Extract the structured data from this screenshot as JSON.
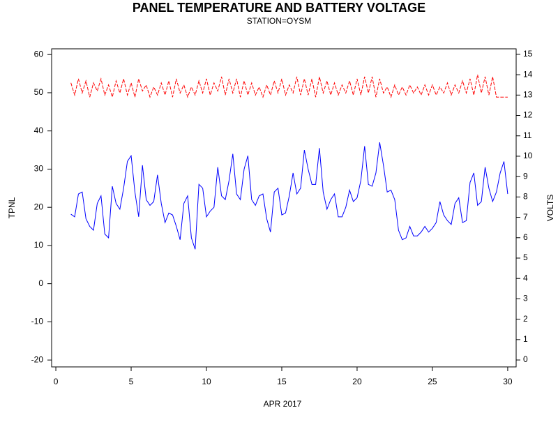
{
  "chart_data": {
    "type": "line",
    "title": "PANEL TEMPERATURE AND BATTERY VOLTAGE",
    "subtitle": "STATION=OYSM",
    "x_label": "APR 2017",
    "y_label": "TPNL",
    "y2_label": "VOLTS",
    "xlim": [
      -0.28,
      30.56
    ],
    "xticks": [
      0,
      5,
      10,
      15,
      20,
      25,
      30
    ],
    "ylim": [
      -21.8,
      61.5
    ],
    "yticks": [
      -20,
      -10,
      0,
      10,
      20,
      30,
      40,
      50,
      60
    ],
    "y2lim": [
      -0.34,
      15.27
    ],
    "y2ticks": [
      0,
      1,
      2,
      3,
      4,
      5,
      6,
      7,
      8,
      9,
      10,
      11,
      12,
      13,
      14,
      15
    ],
    "x": [
      1,
      1.25,
      1.5,
      1.75,
      2,
      2.25,
      2.5,
      2.75,
      3,
      3.25,
      3.5,
      3.75,
      4,
      4.25,
      4.5,
      4.75,
      5,
      5.25,
      5.5,
      5.75,
      6,
      6.25,
      6.5,
      6.75,
      7,
      7.25,
      7.5,
      7.75,
      8,
      8.25,
      8.5,
      8.75,
      9,
      9.25,
      9.5,
      9.75,
      10,
      10.25,
      10.5,
      10.75,
      11,
      11.25,
      11.5,
      11.75,
      12,
      12.25,
      12.5,
      12.75,
      13,
      13.25,
      13.5,
      13.75,
      14,
      14.25,
      14.5,
      14.75,
      15,
      15.25,
      15.5,
      15.75,
      16,
      16.25,
      16.5,
      16.75,
      17,
      17.25,
      17.5,
      17.75,
      18,
      18.25,
      18.5,
      18.75,
      19,
      19.25,
      19.5,
      19.75,
      20,
      20.25,
      20.5,
      20.75,
      21,
      21.25,
      21.5,
      21.75,
      22,
      22.25,
      22.5,
      22.75,
      23,
      23.25,
      23.5,
      23.75,
      24,
      24.25,
      24.5,
      24.75,
      25,
      25.25,
      25.5,
      25.75,
      26,
      26.25,
      26.5,
      26.75,
      27,
      27.25,
      27.5,
      27.75,
      28,
      28.25,
      28.5,
      28.75,
      29,
      29.25,
      29.5,
      29.75,
      30
    ],
    "series": [
      {
        "color": "#0000ff",
        "axis": "y",
        "dashed": false,
        "values": [
          18.2,
          17.5,
          23.5,
          24,
          17,
          15,
          14,
          21,
          23,
          13,
          12,
          25.5,
          21,
          19.5,
          25,
          32,
          33.5,
          24,
          17.5,
          31,
          22,
          20.5,
          21.5,
          28.5,
          21,
          16,
          18.5,
          18,
          15,
          11.5,
          21,
          23,
          12,
          9,
          26,
          25,
          17.5,
          19,
          20,
          30.5,
          23,
          22,
          27,
          34,
          23.5,
          22,
          30,
          33.5,
          22,
          20.5,
          23,
          23.5,
          17,
          13.5,
          24,
          25,
          18,
          18.5,
          23,
          29,
          23.5,
          25,
          35,
          30,
          26,
          26,
          35.5,
          24,
          19.5,
          22,
          23.5,
          17.5,
          17.5,
          20,
          24.5,
          21.5,
          22.5,
          27,
          36,
          26,
          25.5,
          29,
          37,
          31,
          24,
          24.5,
          22,
          14,
          11.5,
          12,
          15,
          12.5,
          12.5,
          13.5,
          15,
          13.5,
          14.5,
          16,
          21.5,
          18,
          16.5,
          15.5,
          21,
          22.5,
          16,
          16.5,
          26.5,
          29,
          20.5,
          21.5,
          30.5,
          25,
          21.5,
          24,
          29,
          32,
          23.5
        ]
      },
      {
        "color": "#ff0000",
        "axis": "y2",
        "dashed": true,
        "values": [
          13.6,
          13.0,
          13.8,
          13.1,
          13.7,
          12.9,
          13.6,
          13.2,
          13.8,
          13.0,
          13.5,
          12.9,
          13.7,
          13.1,
          13.8,
          13.0,
          13.6,
          12.9,
          13.8,
          13.2,
          13.5,
          12.9,
          13.4,
          13.0,
          13.6,
          13.0,
          13.7,
          12.9,
          13.8,
          13.1,
          13.5,
          12.9,
          13.4,
          13.0,
          13.7,
          13.1,
          13.8,
          13.0,
          13.6,
          13.2,
          13.9,
          13.0,
          13.8,
          13.1,
          13.8,
          12.9,
          13.7,
          13.0,
          13.6,
          13.0,
          13.4,
          12.9,
          13.5,
          13.0,
          13.7,
          13.1,
          13.8,
          13.0,
          13.5,
          13.1,
          13.9,
          13.0,
          13.8,
          13.0,
          13.8,
          12.9,
          13.9,
          13.1,
          13.7,
          13.0,
          13.6,
          13.0,
          13.5,
          13.1,
          13.7,
          13.0,
          13.8,
          13.0,
          13.9,
          13.1,
          13.9,
          12.9,
          13.8,
          13.1,
          13.4,
          12.9,
          13.5,
          13.0,
          13.4,
          13.0,
          13.5,
          13.1,
          13.4,
          13.0,
          13.5,
          13.0,
          13.5,
          13.0,
          13.4,
          13.1,
          13.6,
          13.0,
          13.5,
          13.1,
          13.7,
          13.1,
          13.8,
          13.0,
          14.0,
          13.1,
          13.9,
          13.0,
          13.9,
          12.9,
          12.9,
          12.9,
          12.9
        ]
      }
    ]
  }
}
